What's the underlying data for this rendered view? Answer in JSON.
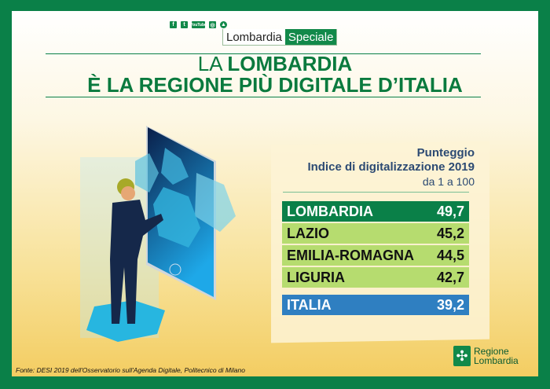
{
  "header": {
    "social_icons": [
      "facebook-icon",
      "twitter-icon",
      "youtube-icon",
      "instagram-icon",
      "telegram-icon"
    ],
    "youtube_label": "YouTube",
    "brand_part1": "Lombardia",
    "brand_part2": "Speciale"
  },
  "title": {
    "line1_prefix": "LA ",
    "line1_bold": "LOMBARDIA",
    "line2": "È LA REGIONE PIÙ DIGITALE D’ITALIA"
  },
  "table": {
    "heading1": "Punteggio",
    "heading2": "Indice di digitalizzazione 2019",
    "heading3": "da 1 a 100",
    "rows": [
      {
        "region": "LOMBARDIA",
        "score": "49,7"
      },
      {
        "region": "LAZIO",
        "score": "45,2"
      },
      {
        "region": "EMILIA-ROMAGNA",
        "score": "44,5"
      },
      {
        "region": "LIGURIA",
        "score": "42,7"
      }
    ],
    "total": {
      "region": "ITALIA",
      "score": "39,2"
    }
  },
  "source": "Fonte: DESI 2019 dell'Osservatorio sull'Agenda Digitale, Politecnico di Milano",
  "logo": {
    "line1": "Regione",
    "line2": "Lombardia"
  },
  "colors": {
    "green": "#0a8048",
    "light_green": "#b6dc6f",
    "blue": "#2f7fc1",
    "navy": "#2c4a73"
  }
}
